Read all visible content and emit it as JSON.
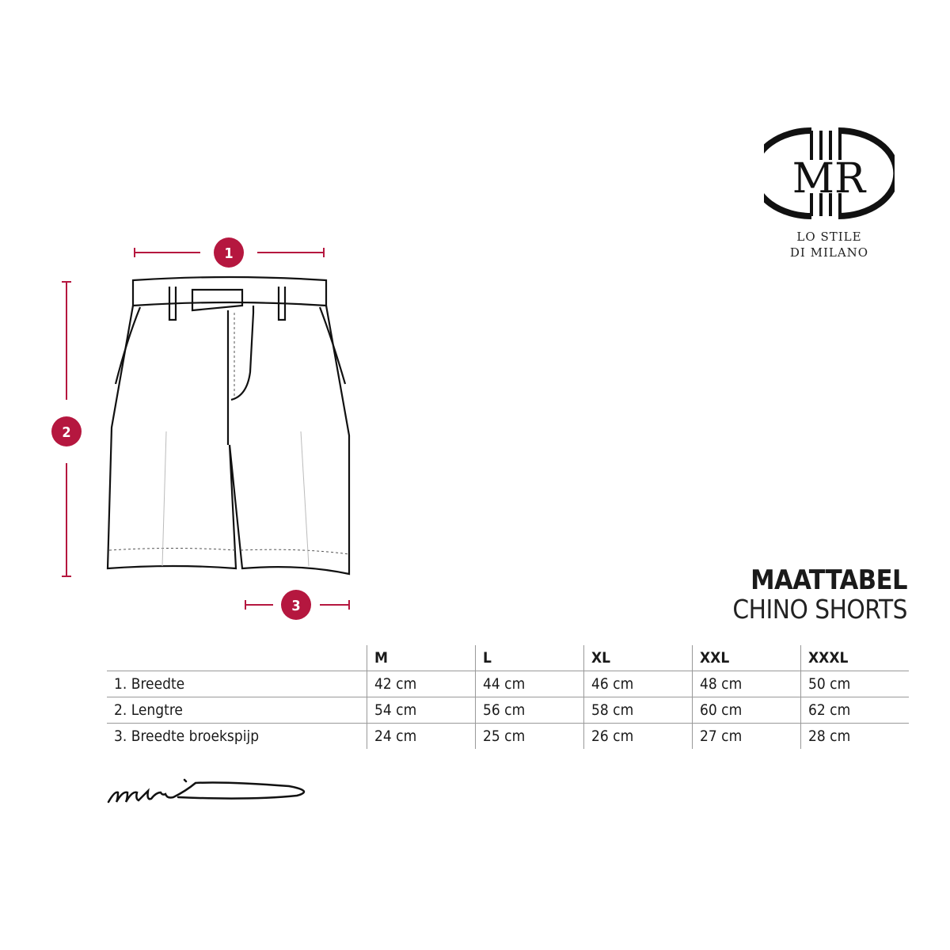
{
  "brand": {
    "monogram": "MR",
    "tagline_line1": "LO STILE",
    "tagline_line2": "DI MILANO",
    "signature": "mr"
  },
  "title": {
    "line1": "MAATTABEL",
    "line2": "CHINO SHORTS"
  },
  "accent_color": "#b5173f",
  "markers": [
    {
      "number": "1",
      "meaning": "Breedte"
    },
    {
      "number": "2",
      "meaning": "Lengtre"
    },
    {
      "number": "3",
      "meaning": "Breedte broekspijp"
    }
  ],
  "table": {
    "headers": [
      "",
      "M",
      "L",
      "XL",
      "XXL",
      "XXXL"
    ],
    "rows": [
      {
        "label": "1. Breedte",
        "values": [
          "42 cm",
          "44 cm",
          "46 cm",
          "48 cm",
          "50 cm"
        ]
      },
      {
        "label": "2. Lengtre",
        "values": [
          "54 cm",
          "56 cm",
          "58 cm",
          "60 cm",
          "62 cm"
        ]
      },
      {
        "label": "3. Breedte broekspijp",
        "values": [
          "24 cm",
          "25 cm",
          "26 cm",
          "27 cm",
          "28 cm"
        ]
      }
    ]
  }
}
